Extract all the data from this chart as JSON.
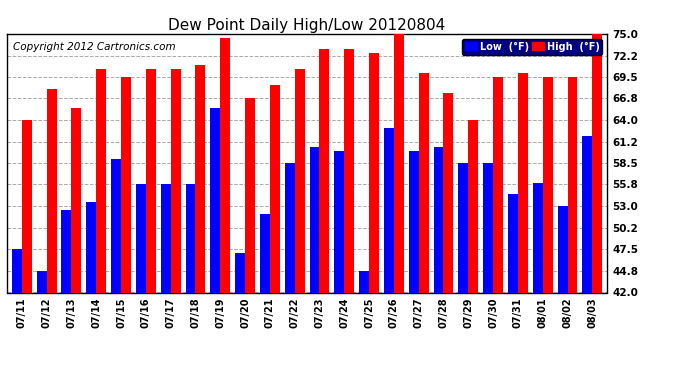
{
  "title": "Dew Point Daily High/Low 20120804",
  "copyright": "Copyright 2012 Cartronics.com",
  "dates": [
    "07/11",
    "07/12",
    "07/13",
    "07/14",
    "07/15",
    "07/16",
    "07/17",
    "07/18",
    "07/19",
    "07/20",
    "07/21",
    "07/22",
    "07/23",
    "07/24",
    "07/25",
    "07/26",
    "07/27",
    "07/28",
    "07/29",
    "07/30",
    "07/31",
    "08/01",
    "08/02",
    "08/03"
  ],
  "high": [
    64.0,
    68.0,
    65.5,
    70.5,
    69.5,
    70.5,
    70.5,
    71.0,
    74.5,
    66.8,
    68.5,
    70.5,
    73.0,
    73.0,
    72.5,
    75.0,
    70.0,
    67.5,
    64.0,
    69.5,
    70.0,
    69.5,
    69.5,
    75.0
  ],
  "low": [
    47.5,
    44.8,
    52.5,
    53.5,
    59.0,
    55.8,
    55.8,
    55.8,
    65.5,
    47.0,
    52.0,
    58.5,
    60.5,
    60.0,
    44.8,
    63.0,
    60.0,
    60.5,
    58.5,
    58.5,
    54.5,
    56.0,
    53.0,
    62.0
  ],
  "yticks": [
    42.0,
    44.8,
    47.5,
    50.2,
    53.0,
    55.8,
    58.5,
    61.2,
    64.0,
    66.8,
    69.5,
    72.2,
    75.0
  ],
  "ymin": 42.0,
  "ymax": 75.0,
  "high_color": "#ff0000",
  "low_color": "#0000ff",
  "bg_color": "#ffffff",
  "grid_color": "#aaaaaa",
  "title_fontsize": 11,
  "copyright_fontsize": 7.5,
  "bar_width": 0.4
}
